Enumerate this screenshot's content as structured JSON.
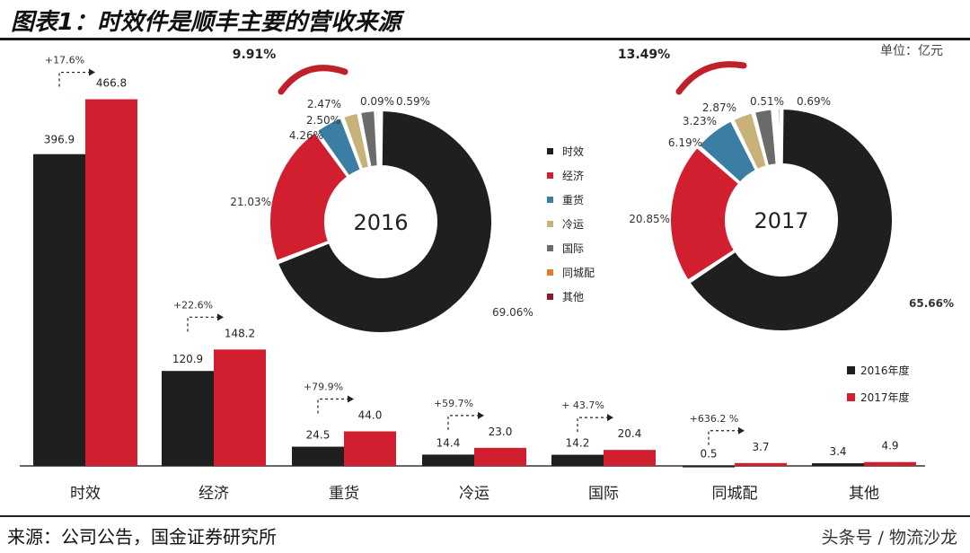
{
  "title": "图表1：时效件是顺丰主要的营收来源",
  "unit": "单位：亿元",
  "source": "来源：公司公告，国金证券研究所",
  "watermark": "头条号 / 物流沙龙",
  "colors": {
    "y2016": "#1f1f1f",
    "y2017": "#d21f2f",
    "growth_arc": "#c0202a"
  },
  "chart_data": [
    {
      "type": "bar",
      "categories": [
        "时效",
        "经济",
        "重货",
        "冷运",
        "国际",
        "同城配",
        "其他"
      ],
      "series": [
        {
          "name": "2016年度",
          "values": [
            396.9,
            120.9,
            24.5,
            14.4,
            14.2,
            0.5,
            3.4
          ]
        },
        {
          "name": "2017年度",
          "values": [
            466.8,
            148.2,
            44.0,
            23.0,
            20.4,
            3.7,
            4.9
          ]
        }
      ],
      "value_labels": {
        "2016": [
          "396.9",
          "120.9",
          "24.5",
          "14.4",
          "14.2",
          "0.5",
          "3.4"
        ],
        "2017": [
          "466.8",
          "148.2",
          "44.0",
          "23.0",
          "20.4",
          "3.7",
          "4.9"
        ]
      },
      "growth_labels": [
        "+17.6%",
        "+22.6%",
        "+79.9%",
        "+59.7%",
        "+ 43.7%",
        "+636.2 %",
        ""
      ],
      "ylim": [
        0,
        480
      ],
      "legend": [
        "2016年度",
        "2017年度"
      ],
      "legend_position": "bottom-right"
    },
    {
      "type": "pie",
      "subtype": "donut",
      "center_label": "2016",
      "legend": [
        "时效",
        "经济",
        "重货",
        "冷运",
        "国际",
        "同城配",
        "其他"
      ],
      "legend_colors": [
        "#1f1f1f",
        "#d21f2f",
        "#3a7fa3",
        "#c8b27a",
        "#6b6b6b",
        "#e8792b",
        "#8a1a2e"
      ],
      "slices": [
        {
          "label": "时效",
          "value": 69.06,
          "text": "69.06%"
        },
        {
          "label": "经济",
          "value": 21.03,
          "text": "21.03%"
        },
        {
          "label": "重货",
          "value": 4.26,
          "text": "4.26%"
        },
        {
          "label": "冷运",
          "value": 2.5,
          "text": "2.50%"
        },
        {
          "label": "国际",
          "value": 2.47,
          "text": "2.47%"
        },
        {
          "label": "同城配",
          "value": 0.09,
          "text": "0.09%"
        },
        {
          "label": "其他",
          "value": 0.59,
          "text": "0.59%"
        }
      ],
      "growth_text": "9.91%"
    },
    {
      "type": "pie",
      "subtype": "donut",
      "center_label": "2017",
      "slices": [
        {
          "label": "时效",
          "value": 65.66,
          "text": "65.66%"
        },
        {
          "label": "经济",
          "value": 20.85,
          "text": "20.85%"
        },
        {
          "label": "重货",
          "value": 6.19,
          "text": "6.19%"
        },
        {
          "label": "冷运",
          "value": 3.23,
          "text": "3.23%"
        },
        {
          "label": "国际",
          "value": 2.87,
          "text": "2.87%"
        },
        {
          "label": "同城配",
          "value": 0.51,
          "text": "0.51%"
        },
        {
          "label": "其他",
          "value": 0.69,
          "text": "0.69%"
        }
      ],
      "growth_text": "13.49%"
    }
  ]
}
